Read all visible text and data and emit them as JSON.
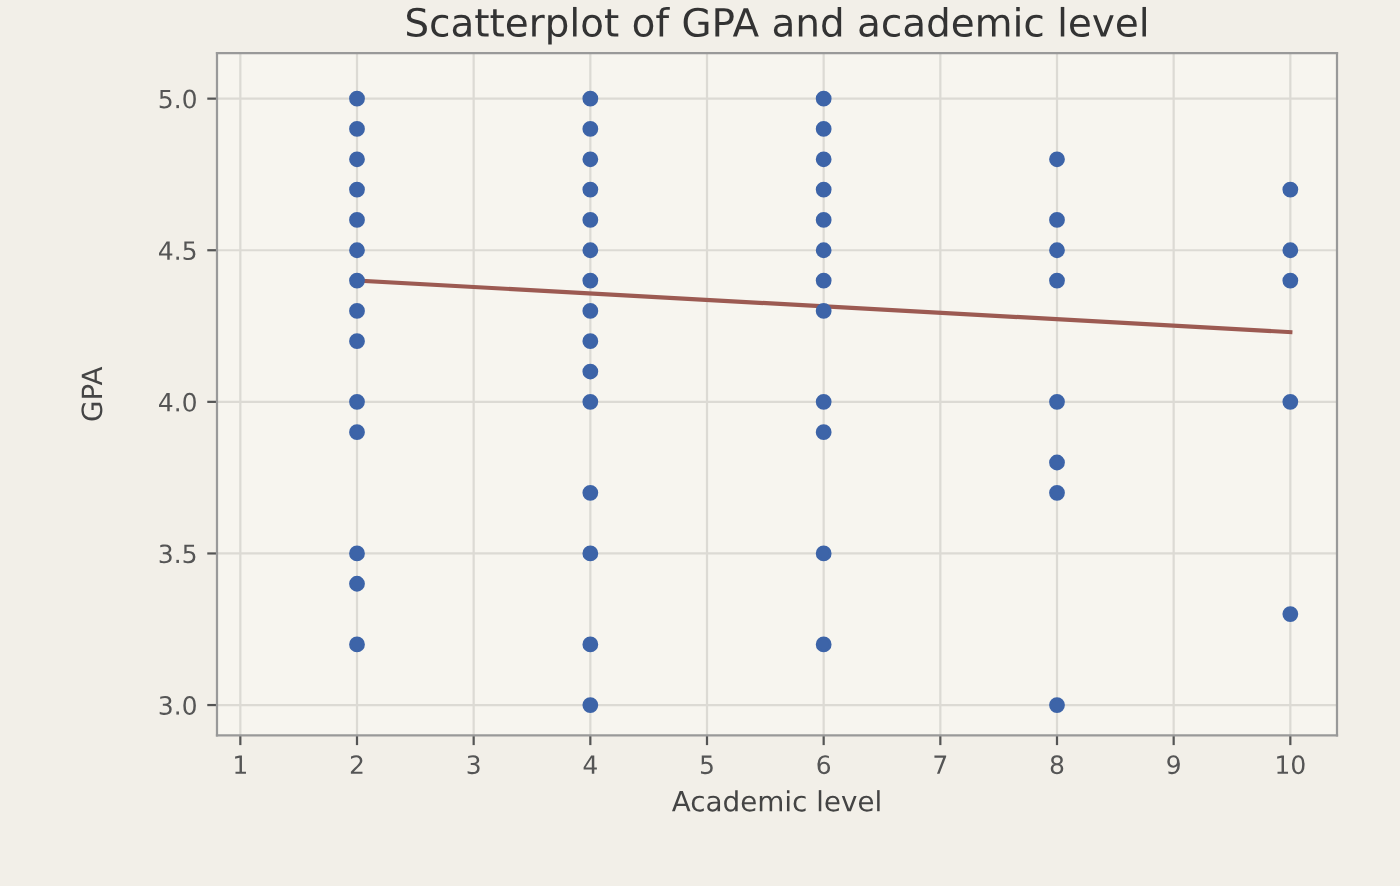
{
  "chart_data": {
    "type": "scatter",
    "title": "Scatterplot of GPA and academic level",
    "xlabel": "Academic level",
    "ylabel": "GPA",
    "series": [
      {
        "color": "#3d64a8",
        "marker": "circle",
        "x": [
          2,
          2,
          2,
          2,
          2,
          2,
          2,
          2,
          2,
          2,
          2,
          2,
          2,
          2,
          4,
          4,
          4,
          4,
          4,
          4,
          4,
          4,
          4,
          4,
          4,
          4,
          4,
          4,
          4,
          6,
          6,
          6,
          6,
          6,
          6,
          6,
          6,
          6,
          6,
          6,
          6,
          8,
          8,
          8,
          8,
          8,
          8,
          8,
          8,
          10,
          10,
          10,
          10,
          10
        ],
        "values": [
          5.0,
          4.9,
          4.8,
          4.7,
          4.6,
          4.5,
          4.4,
          4.3,
          4.2,
          4.0,
          3.9,
          3.5,
          3.4,
          3.2,
          5.0,
          4.9,
          4.8,
          4.7,
          4.6,
          4.5,
          4.4,
          4.3,
          4.2,
          4.1,
          4.0,
          3.7,
          3.5,
          3.2,
          3.0,
          5.0,
          4.9,
          4.8,
          4.7,
          4.6,
          4.5,
          4.4,
          4.3,
          4.0,
          3.9,
          3.5,
          3.2,
          4.8,
          4.6,
          4.5,
          4.4,
          4.0,
          3.8,
          3.7,
          3.0,
          4.7,
          4.5,
          4.4,
          4.0,
          3.3
        ]
      },
      {
        "type": "line",
        "marker": "none",
        "color": "#9c5a52",
        "x": [
          2,
          10
        ],
        "values": [
          4.4,
          4.23
        ]
      }
    ],
    "xlim": [
      0.8,
      10.4
    ],
    "xticks": [
      1,
      2,
      3,
      4,
      5,
      6,
      7,
      8,
      9,
      10
    ],
    "ylim": [
      2.9,
      5.15
    ],
    "yticks": [
      {
        "value": 3.0,
        "label": "3.0"
      },
      {
        "value": 3.5,
        "label": "3.5"
      },
      {
        "value": 4.0,
        "label": "4.0"
      },
      {
        "value": 4.5,
        "label": "4.5"
      },
      {
        "value": 5.0,
        "label": "5.0"
      }
    ],
    "grid": true
  }
}
